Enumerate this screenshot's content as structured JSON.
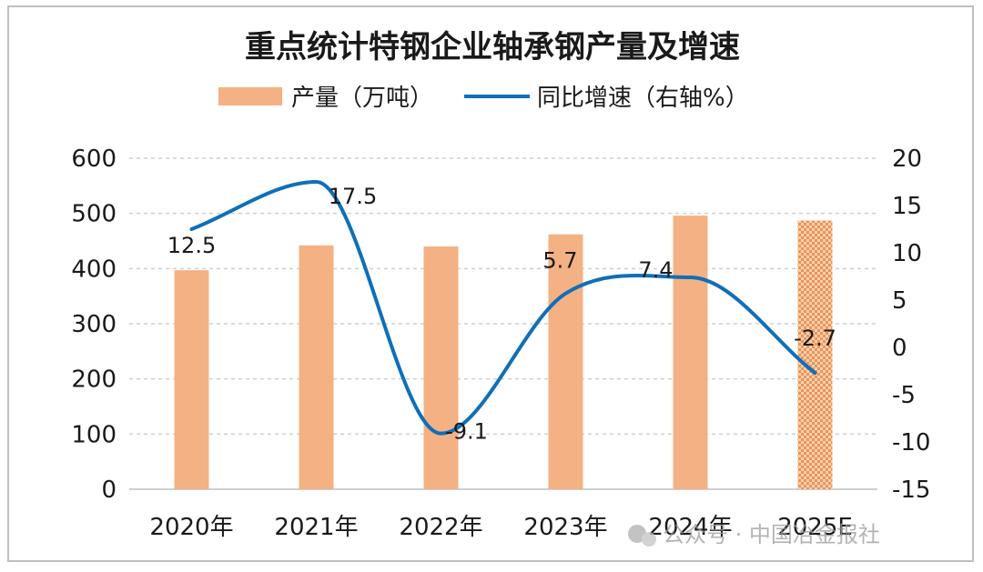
{
  "chart_data": {
    "type": "bar+line",
    "title": "重点统计特钢企业轴承钢产量及增速",
    "legend": {
      "bar_label": "产量（万吨）",
      "line_label": "同比增速（右轴%）"
    },
    "categories": [
      "2020年",
      "2021年",
      "2022年",
      "2023年",
      "2024年",
      "2025E"
    ],
    "series": [
      {
        "name": "产量（万吨）",
        "type": "bar",
        "axis": "left",
        "values": [
          397,
          442,
          440,
          462,
          496,
          487
        ],
        "estimated": [
          false,
          false,
          false,
          false,
          false,
          true
        ],
        "color": "#f4b183"
      },
      {
        "name": "同比增速（右轴%）",
        "type": "line",
        "axis": "right",
        "smooth": true,
        "values": [
          12.5,
          17.5,
          -9.1,
          5.7,
          7.4,
          -2.7
        ],
        "labels": [
          "12.5",
          "17.5",
          "-9.1",
          "5.7",
          "7.4",
          "-2.7"
        ],
        "color": "#0f6fb8"
      }
    ],
    "y_left": {
      "min": 0,
      "max": 600,
      "step": 100,
      "ticks": [
        "0",
        "100",
        "200",
        "300",
        "400",
        "500",
        "600"
      ]
    },
    "y_right": {
      "min": -15,
      "max": 20,
      "step": 5,
      "ticks": [
        "-15",
        "-10",
        "-5",
        "0",
        "5",
        "10",
        "15",
        "20"
      ]
    },
    "grid": true,
    "legend_position": "top"
  },
  "watermark": {
    "text": "公众号 · 中国冶金报社",
    "icon": "wechat-icon"
  }
}
